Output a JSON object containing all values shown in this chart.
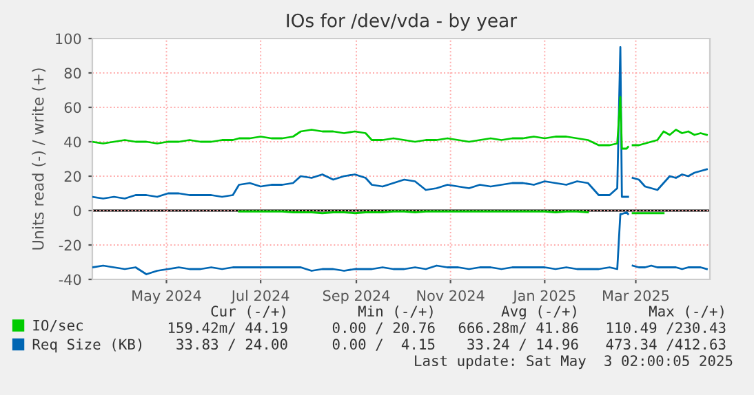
{
  "chart_data": {
    "type": "line",
    "title": "IOs for /dev/vda - by year",
    "ylabel": "Units read (-) / write (+)",
    "x": [
      "2024-03-29",
      "2024-04-05",
      "2024-04-12",
      "2024-04-19",
      "2024-04-26",
      "2024-05-03",
      "2024-05-10",
      "2024-05-17",
      "2024-05-24",
      "2024-05-31",
      "2024-06-07",
      "2024-06-14",
      "2024-06-21",
      "2024-06-28",
      "2024-07-02",
      "2024-07-09",
      "2024-07-16",
      "2024-07-23",
      "2024-07-30",
      "2024-08-06",
      "2024-08-11",
      "2024-08-18",
      "2024-08-25",
      "2024-09-01",
      "2024-09-08",
      "2024-09-15",
      "2024-09-22",
      "2024-09-26",
      "2024-10-03",
      "2024-10-10",
      "2024-10-17",
      "2024-10-24",
      "2024-10-31",
      "2024-11-07",
      "2024-11-14",
      "2024-11-21",
      "2024-11-28",
      "2024-12-05",
      "2024-12-12",
      "2024-12-19",
      "2024-12-26",
      "2025-01-02",
      "2025-01-09",
      "2025-01-16",
      "2025-01-23",
      "2025-01-30",
      "2025-02-06",
      "2025-02-13",
      "2025-02-20",
      "2025-02-27",
      "2025-03-04",
      "2025-03-06",
      "2025-03-07",
      "2025-03-10",
      "2025-03-11",
      "2025-03-12",
      "2025-03-14",
      "2025-03-18",
      "2025-03-22",
      "2025-03-26",
      "2025-03-30",
      "2025-04-03",
      "2025-04-07",
      "2025-04-11",
      "2025-04-15",
      "2025-04-19",
      "2025-04-23",
      "2025-04-27",
      "2025-05-01"
    ],
    "series": [
      {
        "name": "IO/sec",
        "color": "#00cc00",
        "values": [
          40,
          39,
          40,
          41,
          40,
          40,
          39,
          40,
          40,
          41,
          40,
          40,
          41,
          41,
          42,
          42,
          43,
          42,
          42,
          43,
          46,
          47,
          46,
          46,
          45,
          46,
          45,
          41,
          41,
          42,
          41,
          40,
          41,
          41,
          42,
          41,
          40,
          41,
          42,
          41,
          42,
          42,
          43,
          42,
          43,
          43,
          42,
          41,
          38,
          38,
          39,
          66,
          36,
          36,
          37,
          null,
          38,
          38,
          39,
          40,
          41,
          46,
          44,
          47,
          45,
          46,
          44,
          45,
          44
        ]
      },
      {
        "color": "#00cc00",
        "values": [
          null,
          null,
          null,
          null,
          null,
          null,
          null,
          null,
          null,
          null,
          null,
          null,
          null,
          null,
          -0.5,
          -0.5,
          -0.5,
          -0.5,
          -0.5,
          -1,
          -1,
          -1,
          -1.5,
          -1,
          -1,
          -1.5,
          -1,
          -1,
          -1,
          -0.5,
          -0.5,
          -1,
          -0.5,
          -0.5,
          -0.5,
          -0.5,
          -0.5,
          -0.5,
          -0.5,
          -0.5,
          -0.5,
          -0.5,
          -0.5,
          -0.5,
          -1,
          -0.5,
          -0.5,
          -1,
          null,
          null,
          null,
          null,
          null,
          null,
          null,
          null,
          -1.5,
          -1.5,
          -1.5,
          -1.5,
          -1.5,
          -1.5,
          null,
          null,
          null,
          null,
          null,
          null,
          null
        ]
      },
      {
        "name": "Req Size (KB)",
        "color": "#0066b3",
        "values": [
          8,
          7,
          8,
          7,
          9,
          9,
          8,
          10,
          10,
          9,
          9,
          9,
          8,
          9,
          15,
          16,
          14,
          15,
          15,
          16,
          20,
          19,
          21,
          18,
          20,
          21,
          19,
          15,
          14,
          16,
          18,
          17,
          12,
          13,
          15,
          14,
          13,
          15,
          14,
          15,
          16,
          16,
          15,
          17,
          16,
          15,
          17,
          16,
          9,
          9,
          13,
          95,
          8,
          8,
          8,
          null,
          19,
          18,
          14,
          13,
          12,
          16,
          20,
          19,
          21,
          20,
          22,
          23,
          24
        ]
      },
      {
        "color": "#0066b3",
        "values": [
          -33,
          -32,
          -33,
          -34,
          -33,
          -37,
          -35,
          -34,
          -33,
          -34,
          -34,
          -33,
          -34,
          -33,
          -33,
          -33,
          -33,
          -33,
          -33,
          -33,
          -33,
          -35,
          -34,
          -34,
          -35,
          -34,
          -34,
          -34,
          -33,
          -34,
          -34,
          -33,
          -34,
          -32,
          -33,
          -33,
          -34,
          -33,
          -33,
          -34,
          -33,
          -33,
          -33,
          -33,
          -34,
          -33,
          -34,
          -34,
          -34,
          -33,
          -34,
          -2,
          -2,
          -1,
          -2,
          null,
          -32,
          -33,
          -33,
          -32,
          -33,
          -33,
          -33,
          -33,
          -34,
          -33,
          -33,
          -33,
          -34
        ]
      }
    ],
    "xlim": [
      "2024-03-29",
      "2025-05-03"
    ],
    "xticks": [
      {
        "value": "2024-05-16",
        "label": "May 2024"
      },
      {
        "value": "2024-07-16",
        "label": "Jul 2024"
      },
      {
        "value": "2024-09-16",
        "label": "Sep 2024"
      },
      {
        "value": "2024-11-16",
        "label": "Nov 2024"
      },
      {
        "value": "2025-01-16",
        "label": "Jan 2025"
      },
      {
        "value": "2025-03-16",
        "label": "Mar 2025"
      }
    ],
    "ylim": [
      -40,
      100
    ],
    "yticks": [
      -40,
      -20,
      0,
      20,
      40,
      60,
      80,
      100
    ],
    "ref_lines": [
      {
        "axis": "y",
        "value": 0,
        "color": "#000000"
      }
    ],
    "grid": true,
    "legend": "bottom",
    "marker": "none",
    "line_style": "solid",
    "annotations": [
      "Cur (-/+)",
      "Min (-/+)",
      "Avg (-/+)",
      "Max (-/+)",
      "159.42m/ 44.19",
      "0.00 / 20.76",
      "666.28m/ 41.86",
      "110.49 /230.43",
      "33.83 / 24.00",
      "0.00 /  4.15",
      "33.24 / 14.96",
      "473.34 /412.63",
      "Last update: Sat May  3 02:00:05 2025"
    ]
  }
}
